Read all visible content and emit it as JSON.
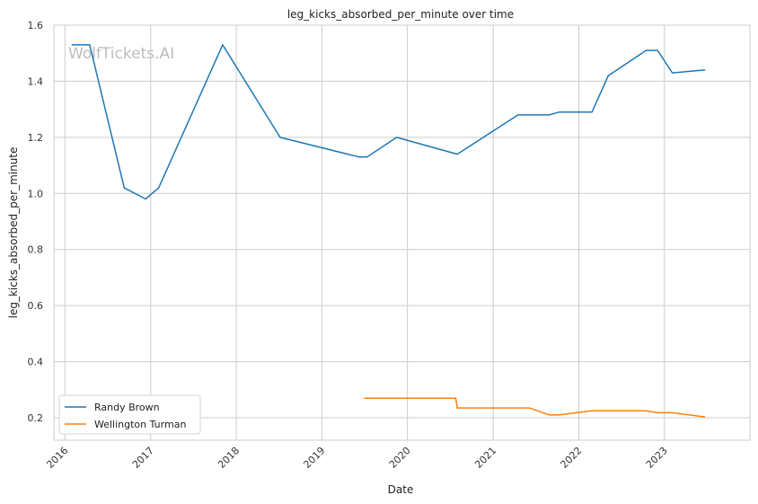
{
  "chart_data": {
    "type": "line",
    "title": "leg_kicks_absorbed_per_minute over time",
    "xlabel": "Date",
    "ylabel": "leg_kicks_absorbed_per_minute",
    "watermark": "WolfTickets.AI",
    "xlim": [
      "2015-11-15",
      "2024-01-01"
    ],
    "ylim": [
      0.12,
      1.6
    ],
    "x_ticks": [
      "2016",
      "2017",
      "2018",
      "2019",
      "2020",
      "2021",
      "2022",
      "2023"
    ],
    "y_ticks": [
      "0.2",
      "0.4",
      "0.6",
      "0.8",
      "1.0",
      "1.2",
      "1.4",
      "1.6"
    ],
    "grid": true,
    "legend_position": "lower-left",
    "series": [
      {
        "name": "Randy Brown",
        "color": "#1f77b4",
        "x": [
          "2016-01-30",
          "2016-04-16",
          "2016-09-10",
          "2016-12-10",
          "2017-02-04",
          "2017-11-04",
          "2018-07-07",
          "2019-06-08",
          "2019-07-13",
          "2019-11-16",
          "2020-08-01",
          "2021-04-17",
          "2021-08-28",
          "2021-10-09",
          "2022-02-26",
          "2022-05-07",
          "2022-10-15",
          "2022-12-03",
          "2023-02-04",
          "2023-06-24"
        ],
        "y": [
          1.53,
          1.53,
          1.02,
          0.98,
          1.02,
          1.53,
          1.2,
          1.13,
          1.13,
          1.2,
          1.14,
          1.28,
          1.28,
          1.29,
          1.29,
          1.42,
          1.51,
          1.51,
          1.43,
          1.44
        ]
      },
      {
        "name": "Wellington Turman",
        "color": "#ff7f0e",
        "x": [
          "2019-06-29",
          "2020-07-25",
          "2020-08-01",
          "2021-06-05",
          "2021-08-28",
          "2021-10-09",
          "2022-02-26",
          "2022-10-15",
          "2022-12-03",
          "2023-02-04",
          "2023-06-24"
        ],
        "y": [
          0.27,
          0.27,
          0.235,
          0.235,
          0.21,
          0.21,
          0.225,
          0.225,
          0.218,
          0.218,
          0.203
        ]
      }
    ]
  }
}
